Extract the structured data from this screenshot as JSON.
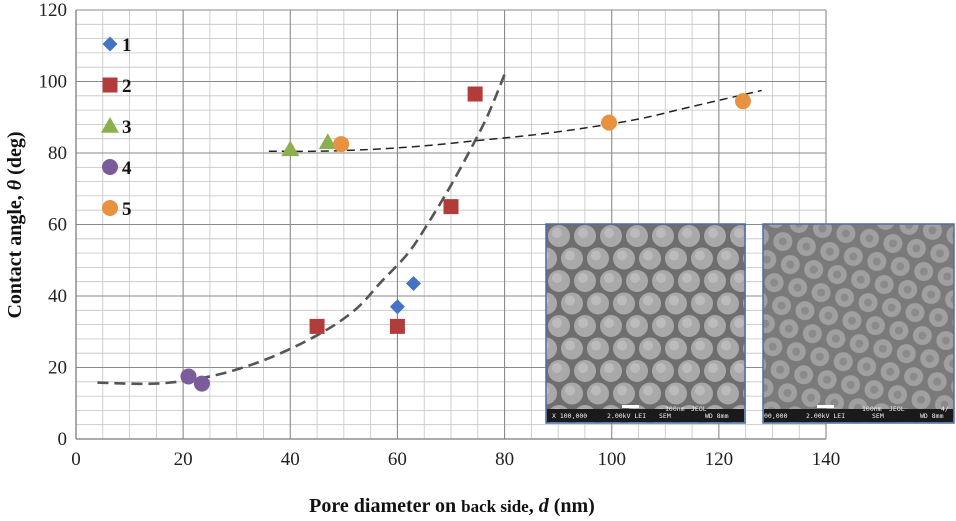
{
  "chart_data": {
    "type": "scatter",
    "title": "",
    "xlabel_main": "Pore diameter on ",
    "xlabel_small": "back side",
    "xlabel_tail": ", ",
    "xlabel_var": "d",
    "xlabel_unit": " (nm)",
    "ylabel_main": "Contact angle, ",
    "ylabel_var": "θ",
    "ylabel_unit": " (deg)",
    "xlim": [
      0,
      140
    ],
    "ylim": [
      0,
      120
    ],
    "xticks": [
      0,
      20,
      40,
      60,
      80,
      100,
      120,
      140
    ],
    "yticks": [
      0,
      20,
      40,
      60,
      80,
      100,
      120
    ],
    "grid": true,
    "legend_position": "top-left",
    "series": [
      {
        "name": "1",
        "marker": "diamond",
        "color": "#4472C4",
        "points": [
          [
            60,
            37
          ],
          [
            63,
            43.5
          ]
        ]
      },
      {
        "name": "2",
        "marker": "square",
        "color": "#B23C3A",
        "points": [
          [
            45,
            31.5
          ],
          [
            60,
            31.5
          ],
          [
            70,
            65
          ],
          [
            74.5,
            96.5
          ]
        ]
      },
      {
        "name": "3",
        "marker": "triangle",
        "color": "#8DB04F",
        "points": [
          [
            40,
            81
          ],
          [
            47,
            83
          ]
        ]
      },
      {
        "name": "4",
        "marker": "circle",
        "color": "#7A5C9B",
        "points": [
          [
            21,
            17.5
          ],
          [
            23.5,
            15.5
          ]
        ]
      },
      {
        "name": "5",
        "marker": "circle",
        "color": "#E8913F",
        "points": [
          [
            49.5,
            82.5
          ],
          [
            99.5,
            88.5
          ],
          [
            124.5,
            94.5
          ]
        ]
      }
    ],
    "trendlines": [
      {
        "style": "dashed-thick",
        "color": "#555555",
        "points": [
          [
            4,
            15.8
          ],
          [
            15,
            15.5
          ],
          [
            25,
            17.5
          ],
          [
            35,
            22
          ],
          [
            45,
            29
          ],
          [
            52,
            36
          ],
          [
            57,
            44
          ],
          [
            62,
            52
          ],
          [
            66,
            61
          ],
          [
            70,
            71
          ],
          [
            74,
            82
          ],
          [
            77,
            91
          ],
          [
            80,
            102
          ]
        ]
      },
      {
        "style": "dashed-thin",
        "color": "#222222",
        "points": [
          [
            36,
            80.5
          ],
          [
            45,
            80.5
          ],
          [
            55,
            81
          ],
          [
            65,
            82
          ],
          [
            75,
            83.5
          ],
          [
            85,
            85
          ],
          [
            95,
            87
          ],
          [
            105,
            89.5
          ],
          [
            115,
            93
          ],
          [
            128,
            97.5
          ]
        ]
      }
    ],
    "insets": [
      {
        "name": "sem-image-1",
        "caption": {
          "mag": "X 100,000",
          "volt": "2.00kV LEI",
          "mode": "SEM",
          "wd": "WD 8mm",
          "scale": "100nm",
          "maker": "JEOL"
        }
      },
      {
        "name": "sem-image-2",
        "caption": {
          "mag": "00,000",
          "volt": "2.00kV LEI",
          "mode": "SEM",
          "wd": "WD 8mm",
          "scale": "100nm",
          "maker": "JEOL",
          "extra": "4/"
        }
      }
    ]
  }
}
